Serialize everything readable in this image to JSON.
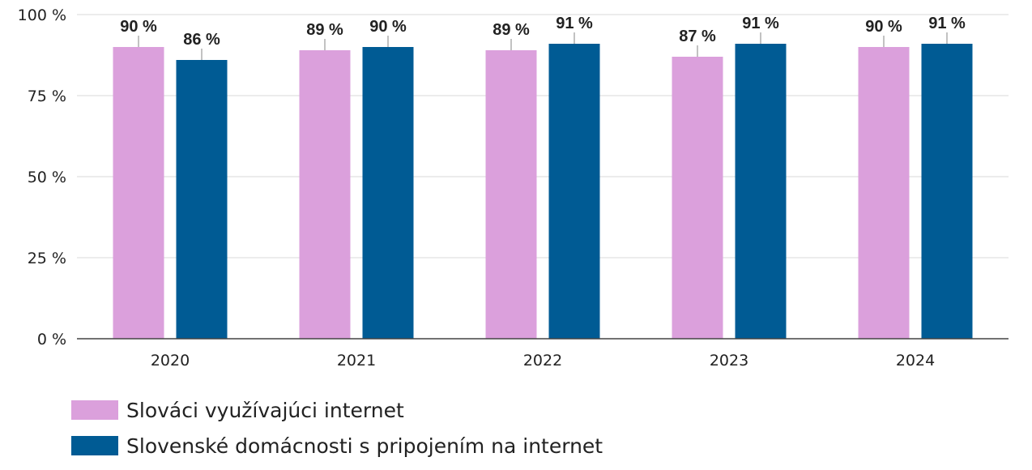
{
  "chart_data": {
    "type": "bar",
    "categories": [
      "2020",
      "2021",
      "2022",
      "2023",
      "2024"
    ],
    "series": [
      {
        "name": "Slováci využívajúci internet",
        "values": [
          90,
          89,
          89,
          87,
          90
        ],
        "labels": [
          "90 %",
          "89 %",
          "89 %",
          "87 %",
          "90 %"
        ],
        "color": "#dba0dc"
      },
      {
        "name": "Slovenské domácnosti s pripojením na internet",
        "values": [
          86,
          90,
          91,
          91,
          91
        ],
        "labels": [
          "86 %",
          "90 %",
          "91 %",
          "91 %",
          "91 %"
        ],
        "color": "#005b94"
      }
    ],
    "yticks": [
      {
        "value": 0,
        "label": "0 %"
      },
      {
        "value": 25,
        "label": "25 %"
      },
      {
        "value": 50,
        "label": "50 %"
      },
      {
        "value": 75,
        "label": "75 %"
      },
      {
        "value": 100,
        "label": "100 %"
      }
    ],
    "ylim": [
      0,
      100
    ],
    "grid": true,
    "legend_position": "bottom-left"
  }
}
